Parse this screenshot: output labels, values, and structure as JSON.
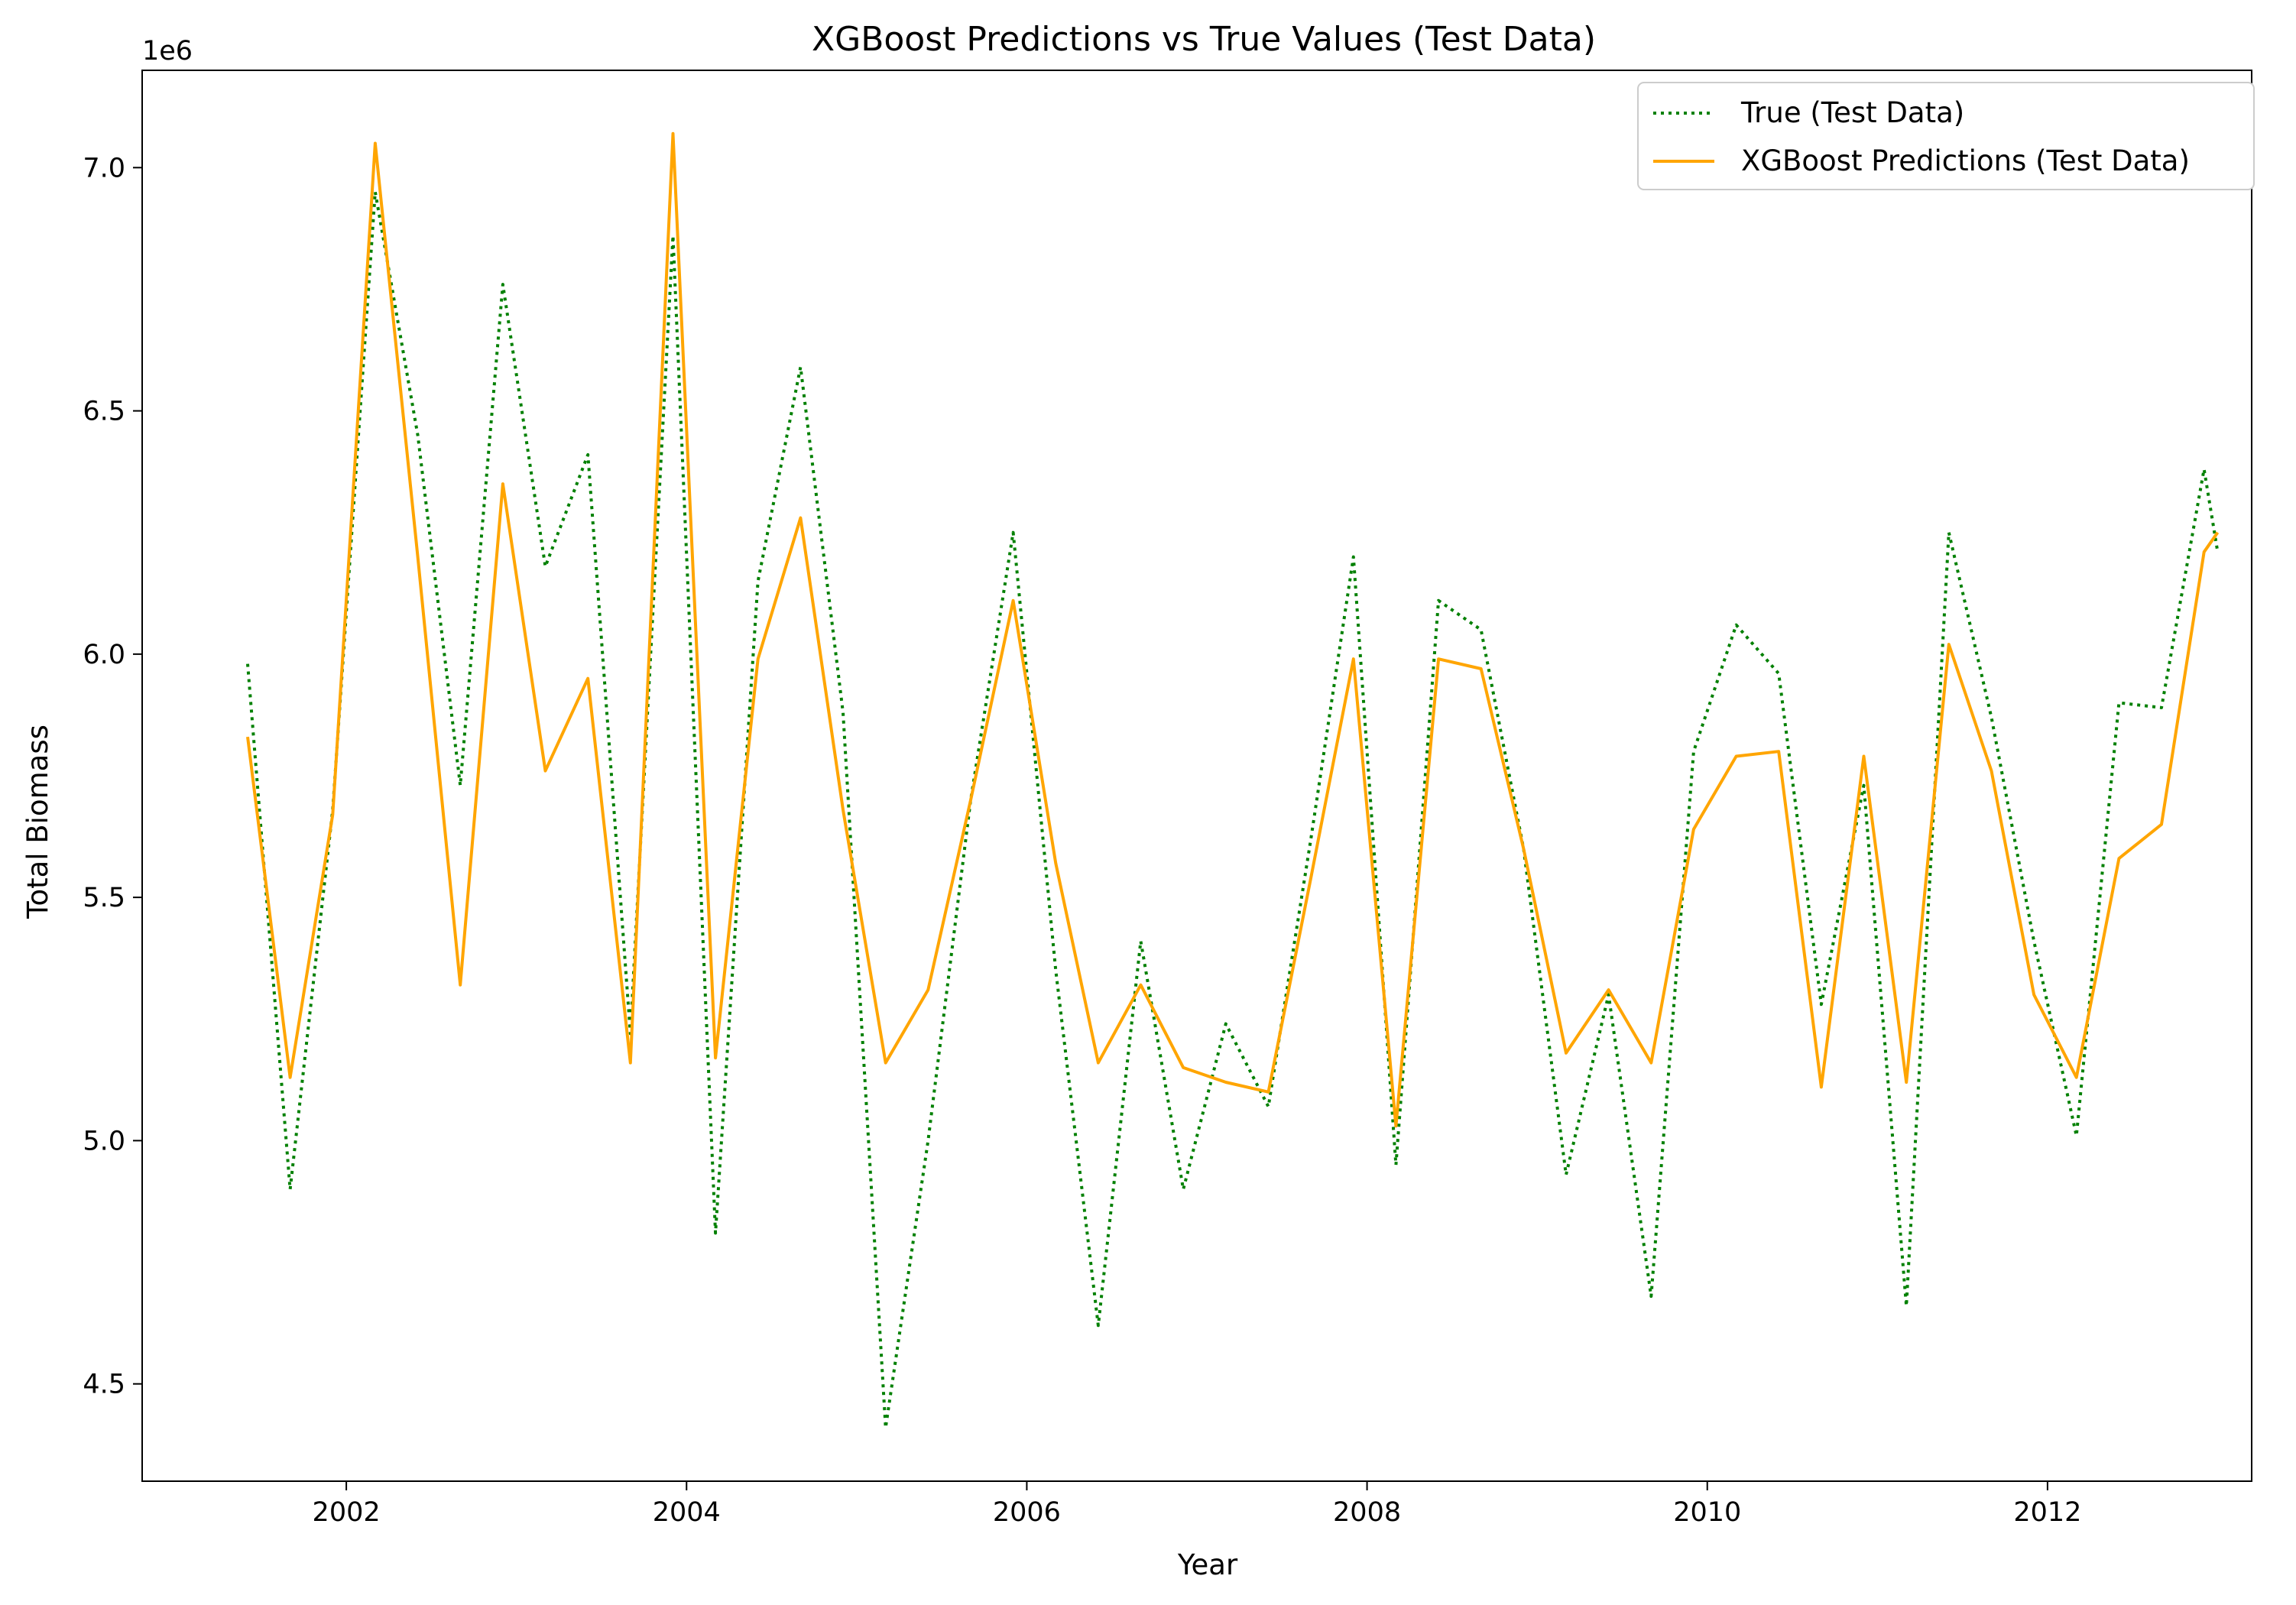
{
  "chart_data": {
    "type": "line",
    "title": "XGBoost Predictions vs True Values (Test Data)",
    "xlabel": "Year",
    "ylabel": "Total Biomass",
    "y_offset_label": "1e6",
    "xlim": [
      2000.8,
      2013.2
    ],
    "ylim": [
      4.3,
      7.2
    ],
    "x_ticks": [
      2002,
      2004,
      2006,
      2008,
      2010,
      2012
    ],
    "x_tick_labels": [
      "2002",
      "2004",
      "2006",
      "2008",
      "2010",
      "2012"
    ],
    "y_ticks": [
      4.5,
      5.0,
      5.5,
      6.0,
      6.5,
      7.0
    ],
    "y_tick_labels": [
      "4.5",
      "5.0",
      "5.5",
      "6.0",
      "6.5",
      "7.0"
    ],
    "grid": false,
    "legend_position": "top-right",
    "x": [
      2001.42,
      2001.67,
      2001.92,
      2002.17,
      2002.42,
      2002.67,
      2002.92,
      2003.17,
      2003.42,
      2003.67,
      2003.92,
      2004.17,
      2004.42,
      2004.67,
      2004.92,
      2005.17,
      2005.42,
      2005.67,
      2005.92,
      2006.17,
      2006.42,
      2006.67,
      2006.92,
      2007.17,
      2007.42,
      2007.67,
      2007.92,
      2008.17,
      2008.42,
      2008.67,
      2008.92,
      2009.17,
      2009.42,
      2009.67,
      2009.92,
      2010.17,
      2010.42,
      2010.67,
      2010.92,
      2011.17,
      2011.42,
      2011.67,
      2011.92,
      2012.17,
      2012.42,
      2012.67,
      2012.92,
      2013.0
    ],
    "series": [
      {
        "name": "True (Test Data)",
        "color": "#008000",
        "style": "dotted",
        "values": [
          5.98,
          4.9,
          5.68,
          6.95,
          6.45,
          5.73,
          6.76,
          6.18,
          6.41,
          5.22,
          6.86,
          4.81,
          6.15,
          6.59,
          5.88,
          4.41,
          5.0,
          5.7,
          6.25,
          5.35,
          4.62,
          5.41,
          4.9,
          5.24,
          5.07,
          5.62,
          6.2,
          4.95,
          6.11,
          6.05,
          5.6,
          4.93,
          5.3,
          4.68,
          5.8,
          6.06,
          5.96,
          5.28,
          5.73,
          4.66,
          6.25,
          5.87,
          5.41,
          5.01,
          5.9,
          5.89,
          6.38,
          6.21
        ]
      },
      {
        "name": "XGBoost Predictions (Test Data)",
        "color": "#FFA500",
        "style": "solid",
        "values": [
          5.83,
          5.13,
          5.67,
          7.05,
          6.2,
          5.32,
          6.35,
          5.76,
          5.95,
          5.16,
          7.07,
          5.17,
          5.99,
          6.28,
          5.68,
          5.16,
          5.31,
          5.7,
          6.11,
          5.57,
          5.16,
          5.32,
          5.15,
          5.12,
          5.1,
          5.54,
          5.99,
          5.03,
          5.99,
          5.97,
          5.6,
          5.18,
          5.31,
          5.16,
          5.64,
          5.79,
          5.8,
          5.11,
          5.79,
          5.12,
          6.02,
          5.76,
          5.3,
          5.13,
          5.58,
          5.65,
          6.21,
          6.25
        ]
      }
    ]
  }
}
